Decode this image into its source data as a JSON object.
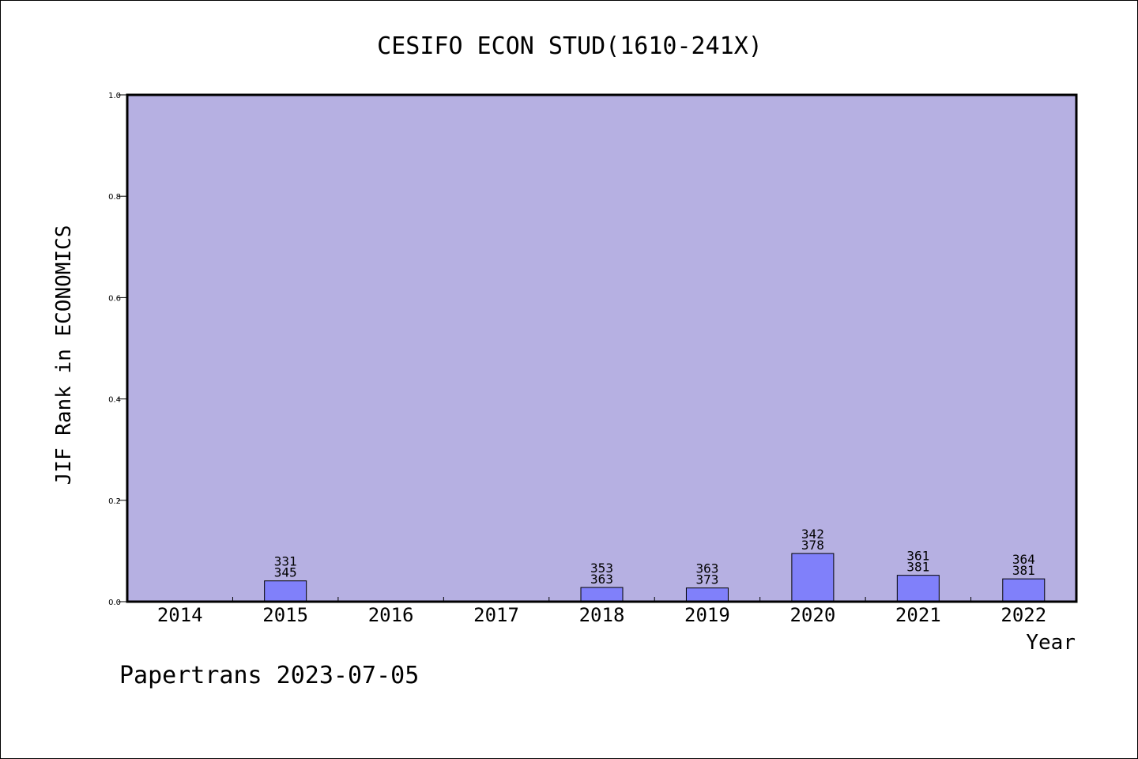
{
  "colors": {
    "plot_background": "#b6b0e2",
    "bar_fill": "#8080fa",
    "bar_stroke": "#000000"
  },
  "chart_data": {
    "type": "bar",
    "title": "CESIFO ECON STUD(1610-241X)",
    "xlabel": "Year",
    "ylabel": "JIF Rank in ECONOMICS",
    "ylim": [
      0,
      1.0
    ],
    "yticks": [
      "0.0",
      "0.2",
      "0.4",
      "0.6",
      "0.8",
      "1.0"
    ],
    "categories": [
      "2014",
      "2015",
      "2016",
      "2017",
      "2018",
      "2019",
      "2020",
      "2021",
      "2022"
    ],
    "values": [
      null,
      0.041,
      null,
      null,
      0.028,
      0.027,
      0.095,
      0.052,
      0.045
    ],
    "rank": [
      null,
      "331",
      null,
      null,
      "353",
      "363",
      "342",
      "361",
      "364"
    ],
    "total": [
      null,
      "345",
      null,
      null,
      "363",
      "373",
      "378",
      "381",
      "381"
    ],
    "grid": false,
    "legend": "none"
  },
  "footer": {
    "text": "Papertrans 2023-07-05"
  }
}
